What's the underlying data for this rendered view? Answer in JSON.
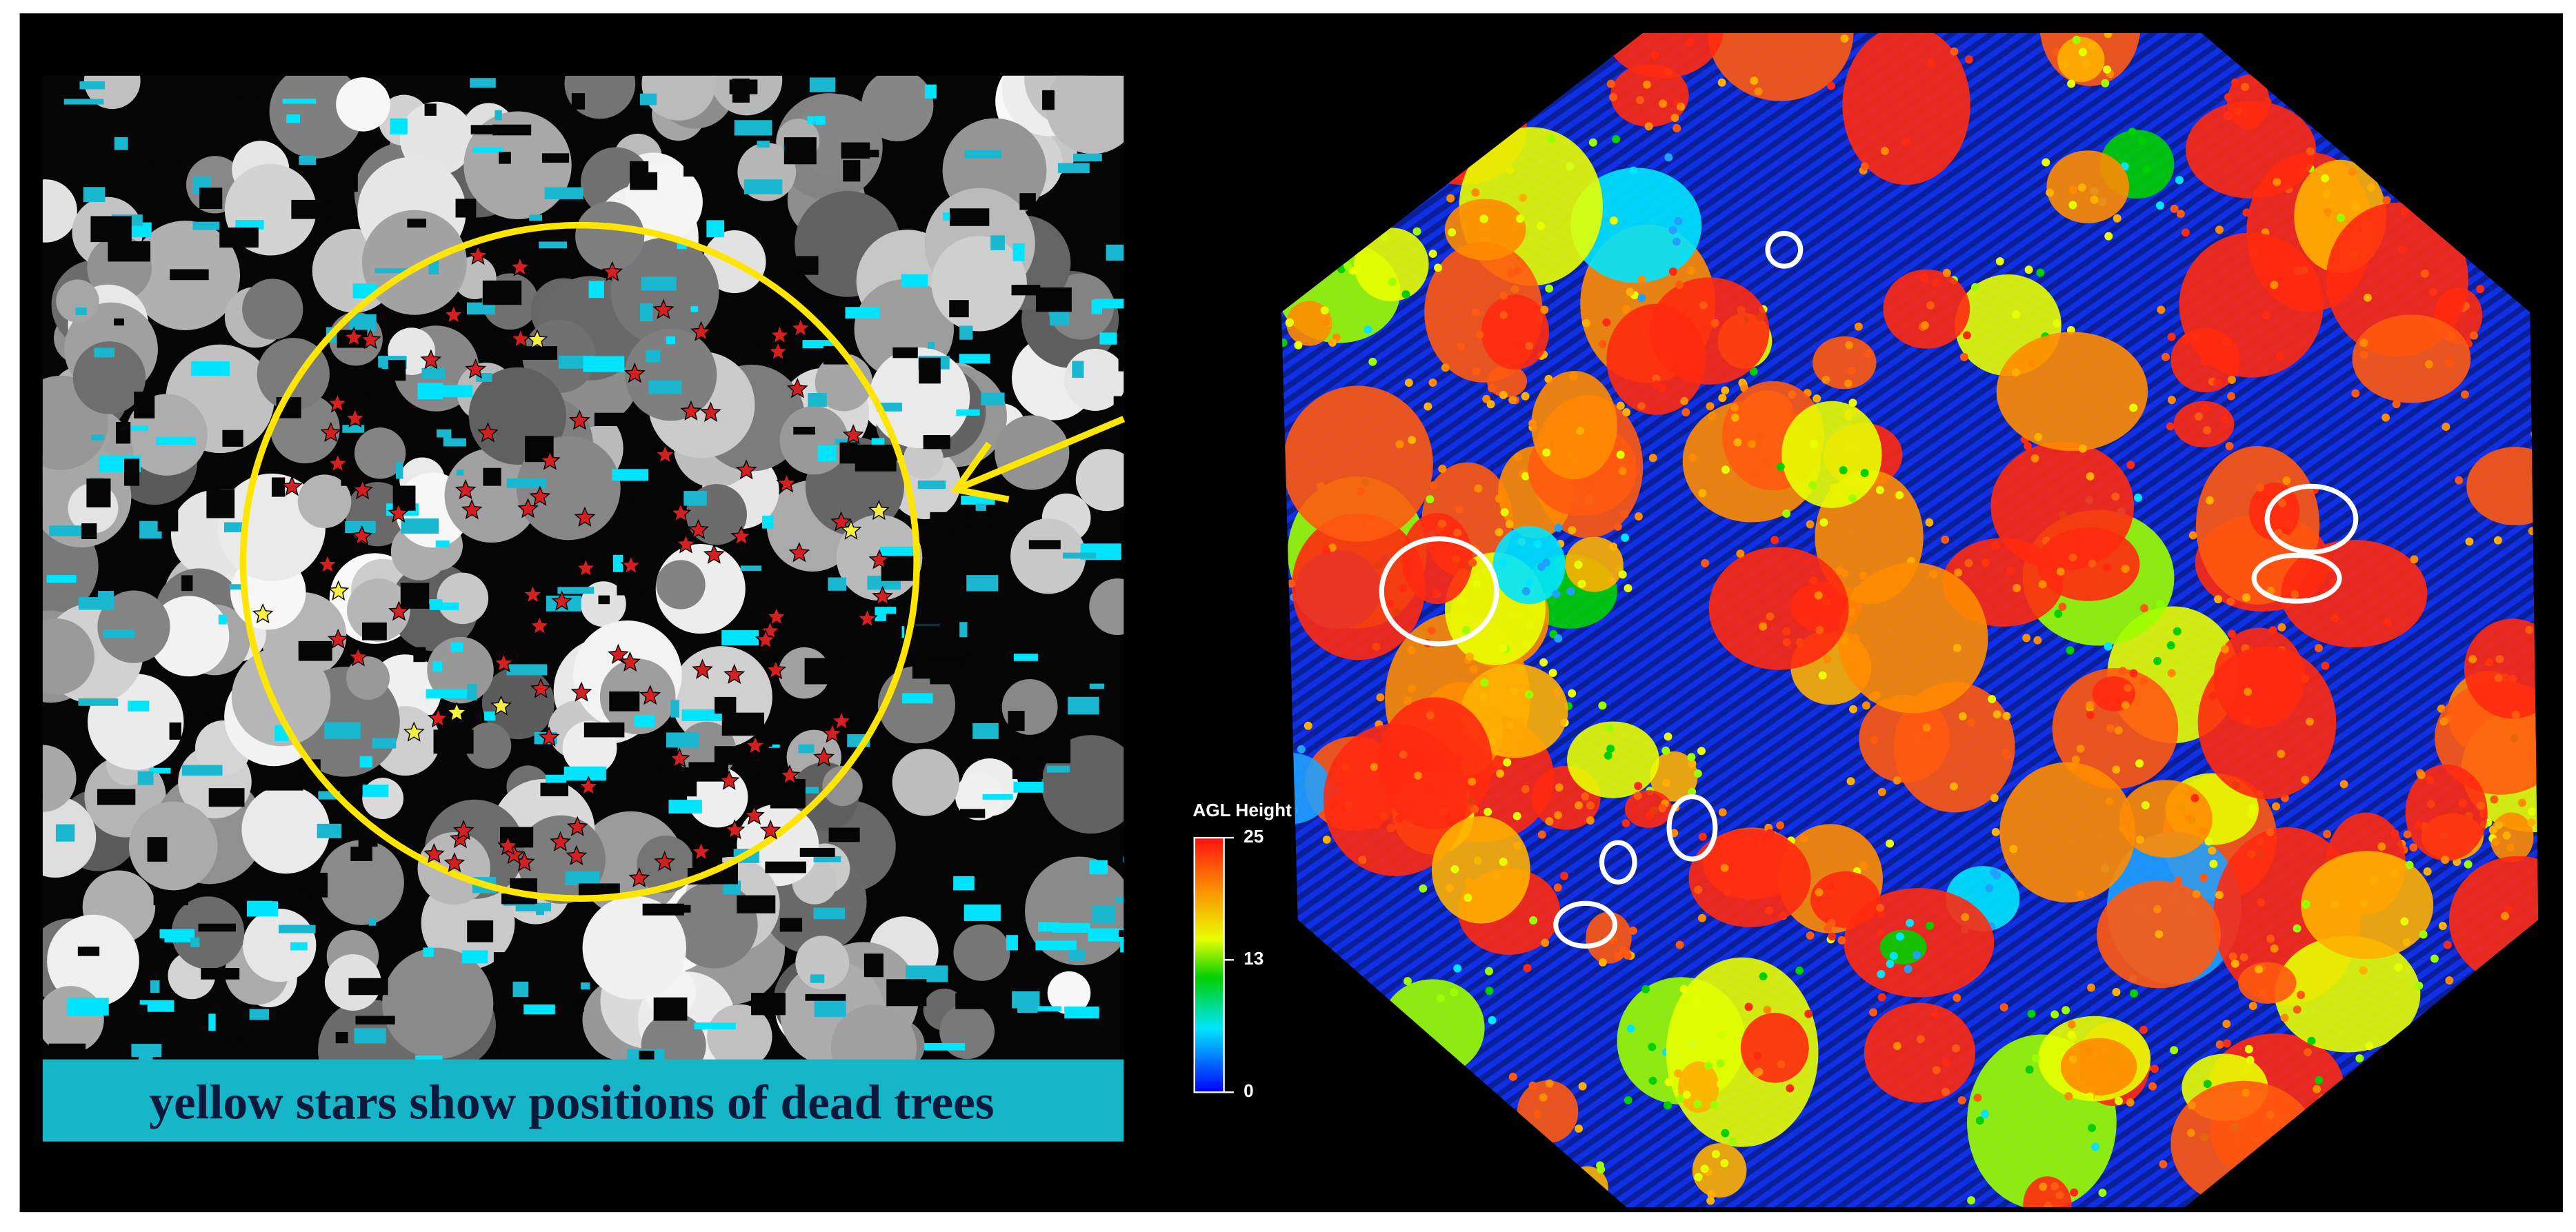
{
  "caption": "yellow stars show positions of dead trees",
  "colorbar": {
    "title": "AGL Height",
    "range": [
      0,
      25
    ],
    "ticks": [
      0,
      13,
      25
    ]
  }
}
